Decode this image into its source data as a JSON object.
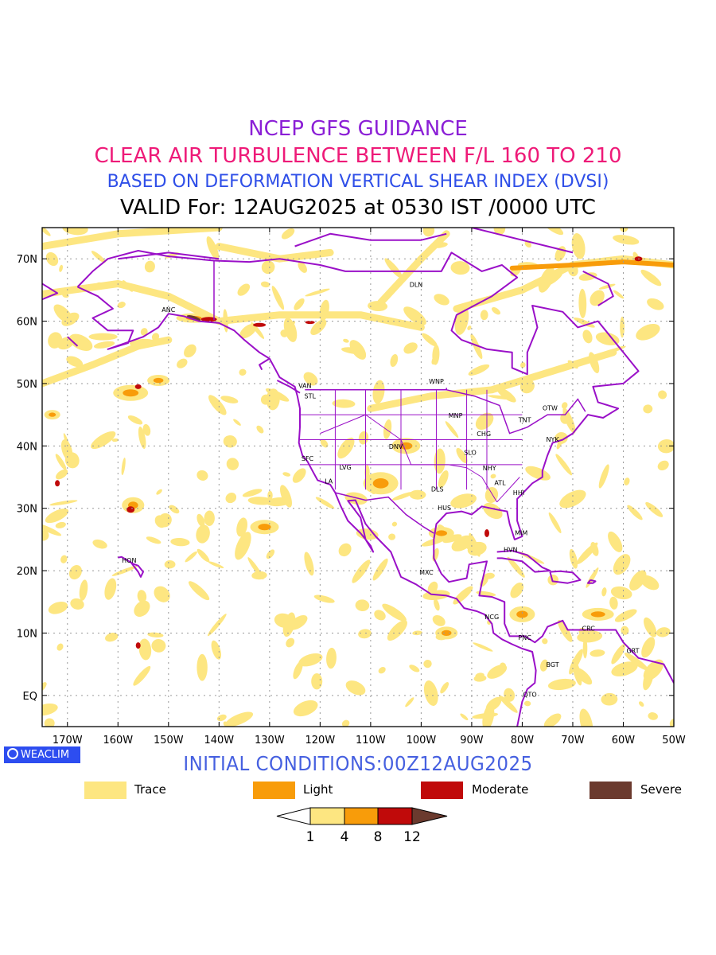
{
  "title": {
    "line1": "NCEP GFS GUIDANCE",
    "line2": "CLEAR AIR TURBULENCE BETWEEN F/L 160 TO 210",
    "line3": "BASED ON DEFORMATION VERTICAL SHEAR INDEX (DVSI)",
    "line4": "VALID For: 12AUG2025 at 0530 IST /0000 UTC"
  },
  "initial_conditions": "INITIAL CONDITIONS:00Z12AUG2025",
  "badge": {
    "text": "WEACLIM",
    "icon": "ring-logo-icon"
  },
  "colors": {
    "title1": "#8b1fd6",
    "title2": "#ee1a78",
    "title3": "#2f4fe8",
    "title4": "#000000",
    "initcond": "#4660e0",
    "badge_bg": "#2d4df0",
    "coast": "#9a10c8",
    "trace": "#fde681",
    "light": "#f89c0a",
    "moderate": "#c00a0a",
    "severe": "#6b3a2e"
  },
  "map": {
    "lon_range": [
      -175,
      -50
    ],
    "lat_range": [
      -5,
      75
    ],
    "lon_ticks": [
      "170W",
      "160W",
      "150W",
      "140W",
      "130W",
      "120W",
      "110W",
      "100W",
      "90W",
      "80W",
      "70W",
      "60W",
      "50W"
    ],
    "lat_ticks": [
      "EQ",
      "10N",
      "20N",
      "30N",
      "40N",
      "50N",
      "60N",
      "70N"
    ],
    "stations": [
      {
        "code": "DLN",
        "lon": -101,
        "lat": 65.5
      },
      {
        "code": "ANC",
        "lon": -150,
        "lat": 61.5
      },
      {
        "code": "VAN",
        "lon": -123,
        "lat": 49.3
      },
      {
        "code": "STL",
        "lon": -122,
        "lat": 47.6
      },
      {
        "code": "WNP",
        "lon": -97,
        "lat": 50
      },
      {
        "code": "OTW",
        "lon": -74.5,
        "lat": 45.7
      },
      {
        "code": "TNT",
        "lon": -79.5,
        "lat": 43.8
      },
      {
        "code": "MNP",
        "lon": -93.2,
        "lat": 44.5
      },
      {
        "code": "CHG",
        "lon": -87.6,
        "lat": 41.6
      },
      {
        "code": "NYK",
        "lon": -74,
        "lat": 40.7
      },
      {
        "code": "DNV",
        "lon": -105,
        "lat": 39.5
      },
      {
        "code": "SFC",
        "lon": -122.5,
        "lat": 37.6
      },
      {
        "code": "LVG",
        "lon": -115,
        "lat": 36.2
      },
      {
        "code": "SLO",
        "lon": -90.3,
        "lat": 38.6
      },
      {
        "code": "NHY",
        "lon": -86.5,
        "lat": 36.1
      },
      {
        "code": "LA",
        "lon": -118.3,
        "lat": 34
      },
      {
        "code": "ATL",
        "lon": -84.4,
        "lat": 33.7
      },
      {
        "code": "DLS",
        "lon": -96.8,
        "lat": 32.7
      },
      {
        "code": "HHI",
        "lon": -80.7,
        "lat": 32.1
      },
      {
        "code": "HUS",
        "lon": -95.4,
        "lat": 29.7
      },
      {
        "code": "MIM",
        "lon": -80.2,
        "lat": 25.7
      },
      {
        "code": "HON",
        "lon": -157.8,
        "lat": 21.3
      },
      {
        "code": "HVN",
        "lon": -82.3,
        "lat": 23
      },
      {
        "code": "MXC",
        "lon": -99,
        "lat": 19.4
      },
      {
        "code": "NCG",
        "lon": -86,
        "lat": 12.2
      },
      {
        "code": "CRC",
        "lon": -66.9,
        "lat": 10.4
      },
      {
        "code": "PNC",
        "lon": -79.5,
        "lat": 8.9
      },
      {
        "code": "GRT",
        "lon": -58.1,
        "lat": 6.8
      },
      {
        "code": "BGT",
        "lon": -74,
        "lat": 4.6
      },
      {
        "code": "QTO",
        "lon": -78.5,
        "lat": -0.2
      }
    ]
  },
  "legend": {
    "items": [
      {
        "label": "Trace",
        "color": "#fde681"
      },
      {
        "label": "Light",
        "color": "#f89c0a"
      },
      {
        "label": "Moderate",
        "color": "#c00a0a"
      },
      {
        "label": "Severe",
        "color": "#6b3a2e"
      }
    ],
    "colorbar_ticks": [
      "1",
      "4",
      "8",
      "12"
    ]
  }
}
